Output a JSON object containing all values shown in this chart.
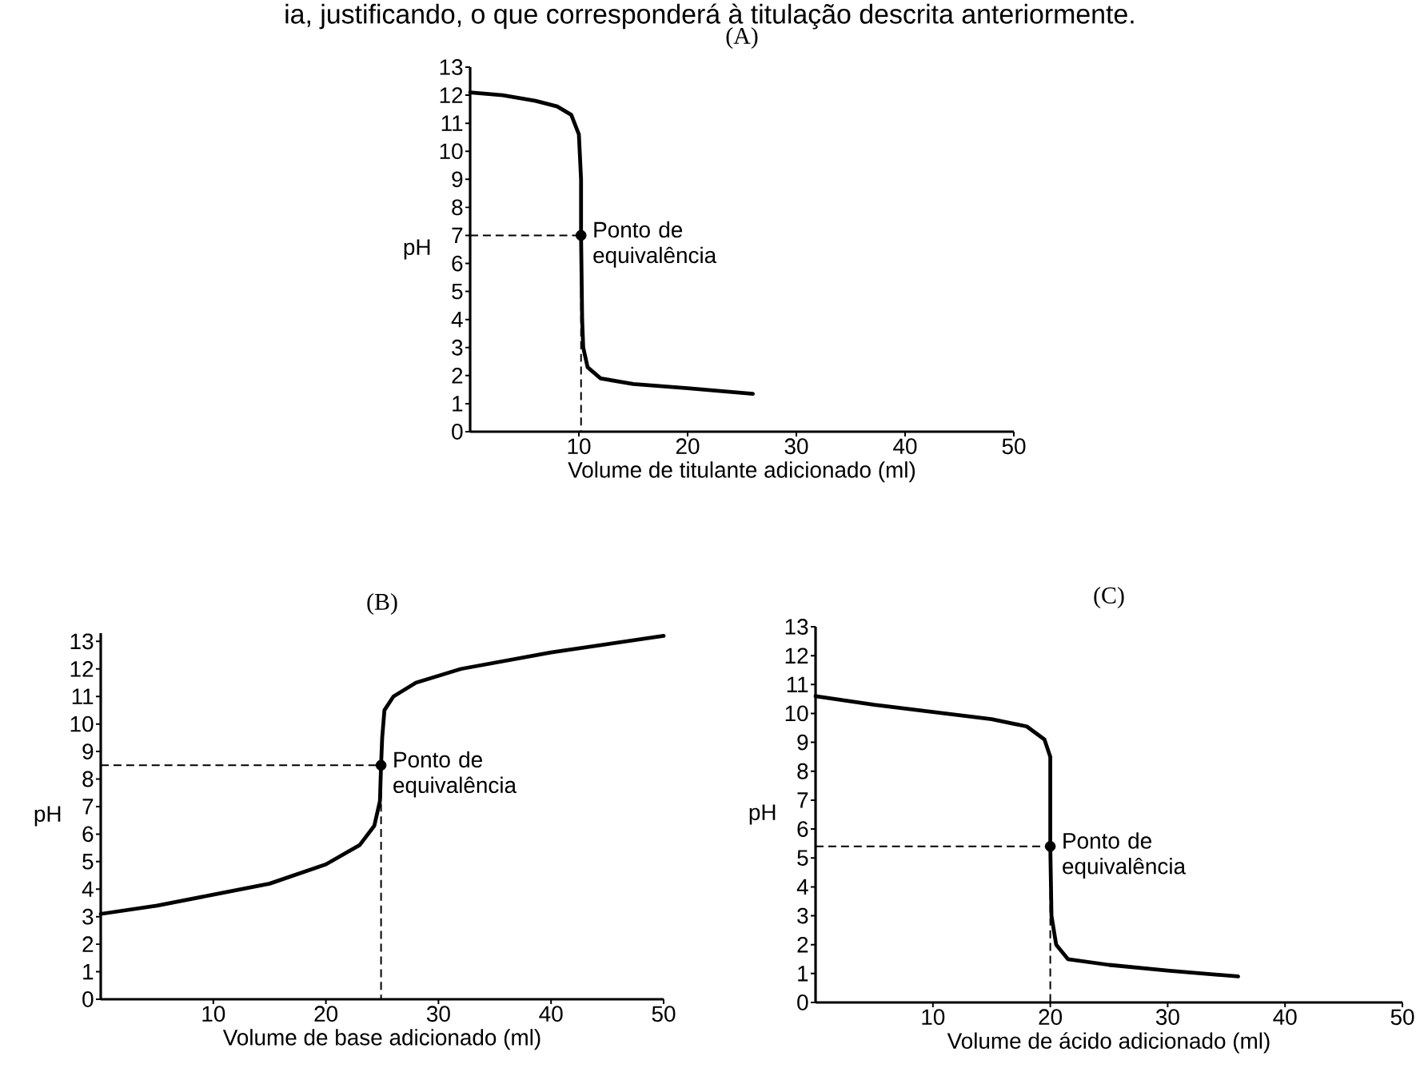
{
  "chart_data": [
    {
      "type": "line",
      "title": "(A)",
      "xlabel": "Volume de titulante adicionado (ml)",
      "ylabel": "pH",
      "xlim": [
        0,
        50
      ],
      "ylim": [
        0,
        13
      ],
      "xticks": [
        10,
        20,
        30,
        40,
        50
      ],
      "yticks": [
        0,
        1,
        2,
        3,
        4,
        5,
        6,
        7,
        8,
        9,
        10,
        11,
        12,
        13
      ],
      "series": [
        {
          "color": "#000000",
          "marker": "none",
          "line_style": "solid",
          "x": [
            0,
            3,
            6,
            8,
            9.3,
            10,
            10.2,
            10.2,
            10.3,
            10.4,
            10.8,
            12,
            15,
            20,
            26
          ],
          "values": [
            12.1,
            12,
            11.8,
            11.6,
            11.3,
            10.6,
            9,
            7,
            4,
            3,
            2.3,
            1.9,
            1.7,
            1.55,
            1.35
          ]
        },
        {
          "type": "line",
          "color": "#000000",
          "marker": "none",
          "line_style": "dashed",
          "x": [
            0,
            10.2,
            10.2
          ],
          "values": [
            7,
            7,
            0
          ]
        },
        {
          "type": "scatter",
          "color": "#000000",
          "marker": "circle",
          "x": [
            10.2
          ],
          "values": [
            7
          ]
        }
      ],
      "annotations": [
        {
          "text": "Ponto de equivalência",
          "x": 10.2,
          "y": 7
        },
        "ia, justificando, o que corresponderá à titulação descrita anteriormente."
      ]
    },
    {
      "type": "line",
      "title": "(B)",
      "xlabel": "Volume de base adicionado (ml)",
      "ylabel": "pH",
      "xlim": [
        0,
        50
      ],
      "ylim": [
        0,
        13.3
      ],
      "xticks": [
        10,
        20,
        30,
        40,
        50
      ],
      "yticks": [
        0,
        1,
        2,
        3,
        4,
        5,
        6,
        7,
        8,
        9,
        10,
        11,
        12,
        13
      ],
      "series": [
        {
          "color": "#000000",
          "marker": "none",
          "line_style": "solid",
          "x": [
            0,
            5,
            10,
            15,
            20,
            23,
            24.3,
            24.8,
            24.9,
            25,
            25.2,
            26,
            28,
            32,
            40,
            50
          ],
          "values": [
            3.1,
            3.4,
            3.8,
            4.2,
            4.9,
            5.6,
            6.3,
            7.2,
            8.5,
            9.5,
            10.5,
            11,
            11.5,
            12,
            12.6,
            13.2
          ]
        },
        {
          "type": "line",
          "color": "#000000",
          "marker": "none",
          "line_style": "dashed",
          "x": [
            0,
            24.9,
            24.9
          ],
          "values": [
            8.5,
            8.5,
            0
          ]
        },
        {
          "type": "scatter",
          "color": "#000000",
          "marker": "circle",
          "x": [
            24.9
          ],
          "values": [
            8.5
          ]
        }
      ],
      "annotations": [
        {
          "text": "Ponto de equivalência",
          "x": 24.9,
          "y": 8.5
        }
      ]
    },
    {
      "type": "line",
      "title": "(C)",
      "xlabel": "Volume de ácido adicionado (ml)",
      "ylabel": "pH",
      "xlim": [
        0,
        50
      ],
      "ylim": [
        0,
        13
      ],
      "xticks": [
        10,
        20,
        30,
        40,
        50
      ],
      "yticks": [
        0,
        1,
        2,
        3,
        4,
        5,
        6,
        7,
        8,
        9,
        10,
        11,
        12,
        13
      ],
      "series": [
        {
          "color": "#000000",
          "marker": "none",
          "line_style": "solid",
          "x": [
            0,
            5,
            10,
            15,
            18,
            19.5,
            20,
            20,
            20.1,
            20.5,
            21.5,
            25,
            30,
            36
          ],
          "values": [
            10.6,
            10.3,
            10.05,
            9.8,
            9.55,
            9.1,
            8.5,
            5.4,
            3,
            2,
            1.5,
            1.3,
            1.1,
            0.9
          ]
        },
        {
          "type": "line",
          "color": "#000000",
          "marker": "none",
          "line_style": "dashed",
          "x": [
            0,
            20,
            20
          ],
          "values": [
            5.4,
            5.4,
            0
          ]
        },
        {
          "type": "scatter",
          "color": "#000000",
          "marker": "circle",
          "x": [
            20
          ],
          "values": [
            5.4
          ]
        }
      ],
      "annotations": [
        {
          "text": "Ponto de equivalência",
          "x": 20,
          "y": 5.4
        }
      ]
    }
  ]
}
